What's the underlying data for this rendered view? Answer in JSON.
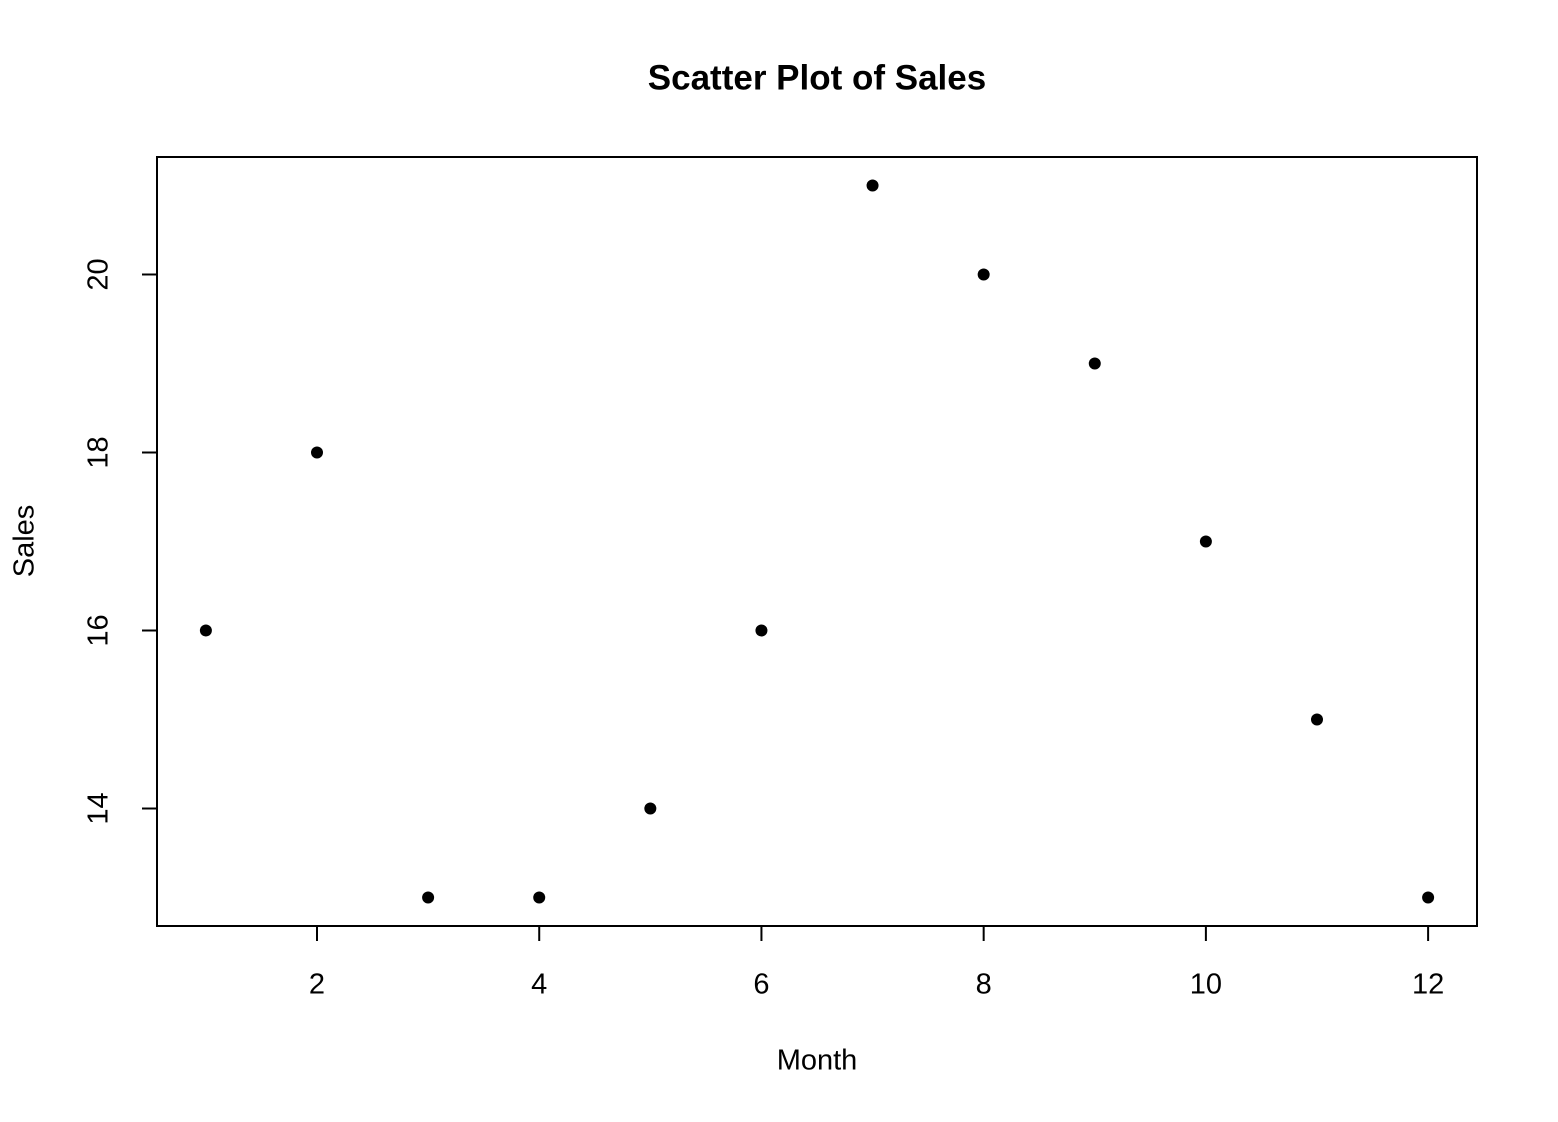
{
  "chart_data": {
    "type": "scatter",
    "title": "Scatter Plot of Sales",
    "x_label": "Month",
    "y_label": "Sales",
    "x": [
      1,
      2,
      3,
      4,
      5,
      6,
      7,
      8,
      9,
      10,
      11,
      12
    ],
    "values": [
      16,
      18,
      13,
      13,
      14,
      16,
      21,
      20,
      19,
      17,
      15,
      13
    ],
    "color": "#000000",
    "xlim": [
      0.56,
      12.44
    ],
    "xticks": [
      2,
      4,
      6,
      8,
      10,
      12
    ],
    "ylim": [
      12.68,
      21.32
    ],
    "yticks": [
      14,
      16,
      18,
      20
    ],
    "grid": false
  }
}
